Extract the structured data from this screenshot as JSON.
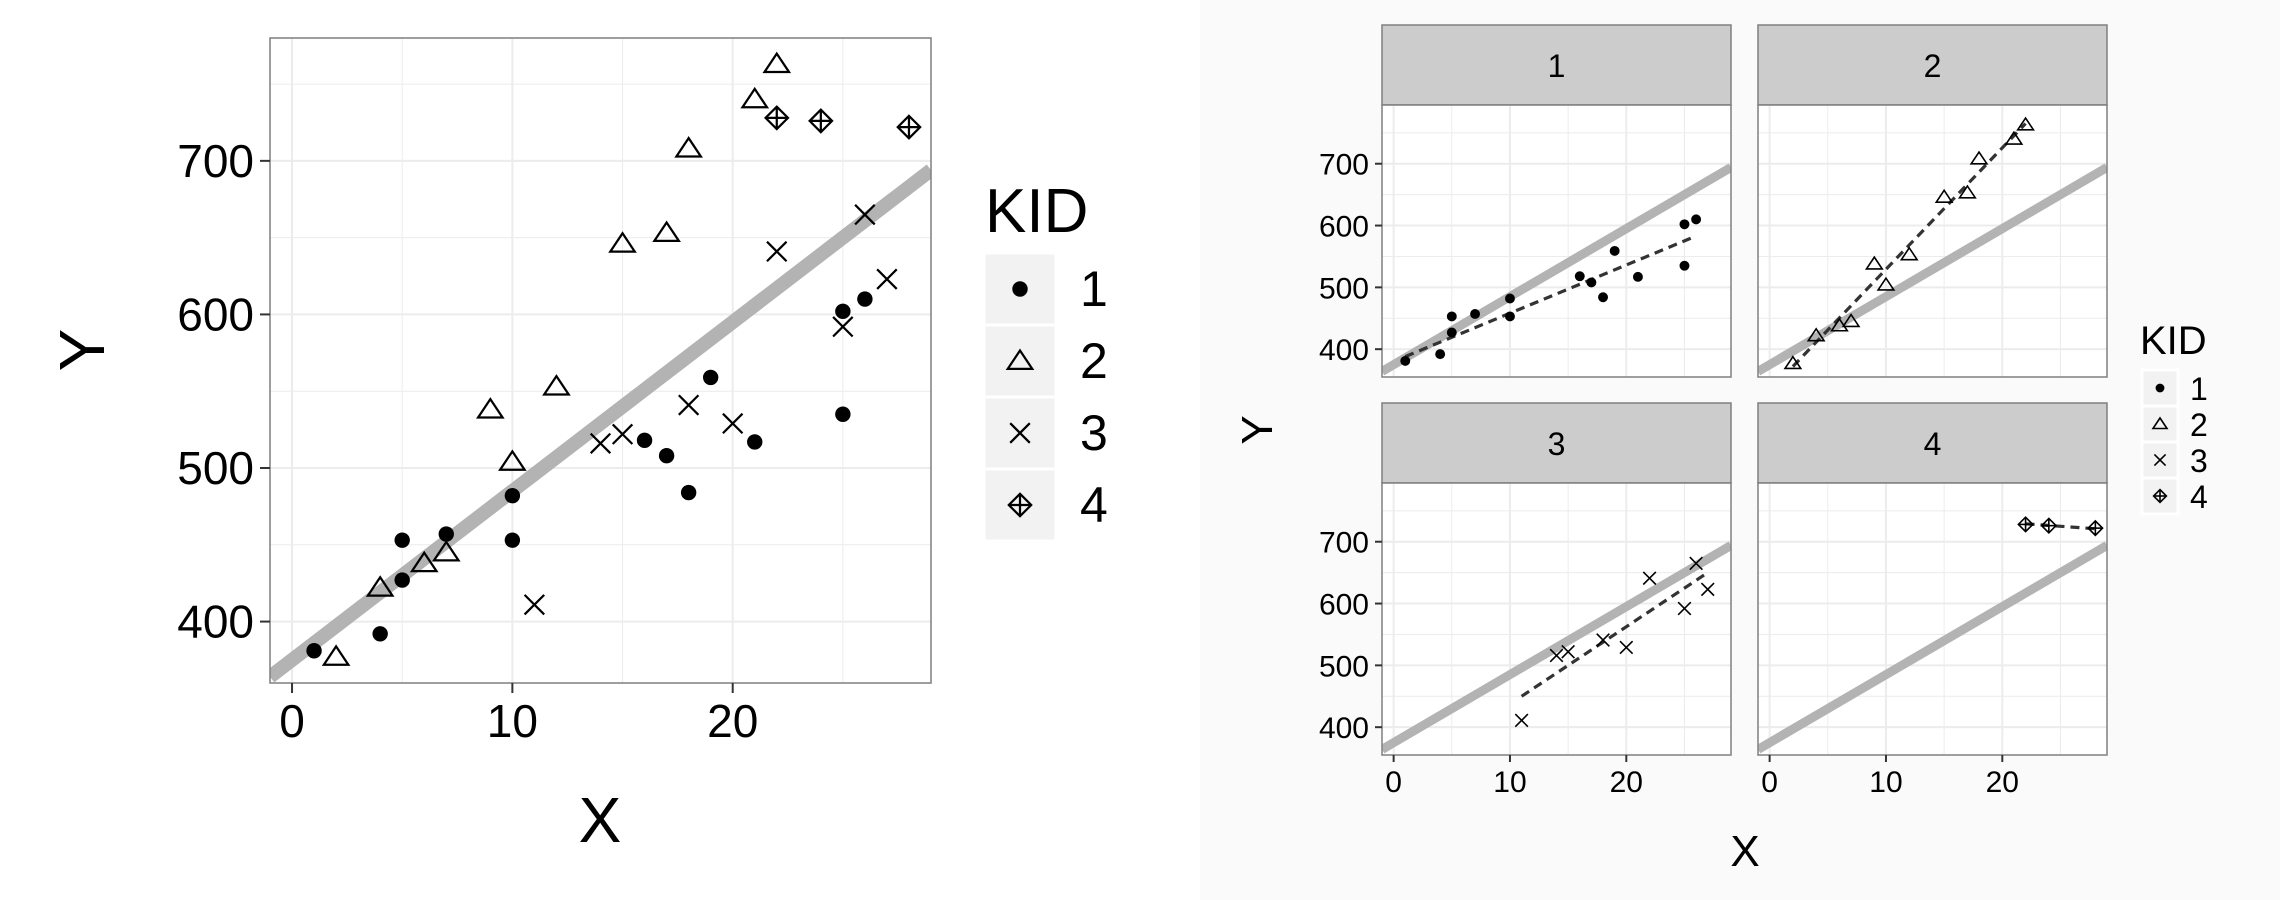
{
  "colors": {
    "background": "#ffffff",
    "right_background": "#fafafa",
    "panel_background": "#ffffff",
    "grid": "#ececec",
    "panel_border": "#7f7f7f",
    "strip_fill": "#cccccc",
    "regression_line": "#b3b3b3",
    "kid_fit_line": "#333333",
    "points": "#000000"
  },
  "chart_data": [
    {
      "type": "scatter",
      "title": "",
      "xlabel": "X",
      "ylabel": "Y",
      "xlim": [
        -1,
        29
      ],
      "ylim": [
        360,
        780
      ],
      "xticks": [
        0,
        10,
        20
      ],
      "yticks": [
        400,
        500,
        600,
        700
      ],
      "grid": true,
      "legend": {
        "title": "KID",
        "position": "right",
        "entries": [
          "1",
          "2",
          "3",
          "4"
        ],
        "shapes": [
          "filled-circle",
          "open-triangle",
          "cross",
          "circle-plus"
        ]
      },
      "regression_line": {
        "intercept": 375,
        "slope": 11,
        "color": "#b3b3b3"
      },
      "series": [
        {
          "name": "1",
          "shape": "filled-circle",
          "x": [
            1,
            4,
            5,
            5,
            7,
            10,
            10,
            16,
            17,
            18,
            19,
            21,
            25,
            25,
            26
          ],
          "y": [
            381,
            392,
            427,
            453,
            457,
            453,
            482,
            518,
            508,
            484,
            559,
            517,
            535,
            602,
            610
          ]
        },
        {
          "name": "2",
          "shape": "open-triangle",
          "x": [
            2,
            4,
            6,
            7,
            9,
            10,
            12,
            15,
            17,
            18,
            21,
            22
          ],
          "y": [
            377,
            422,
            438,
            445,
            538,
            504,
            553,
            646,
            653,
            708,
            740,
            763
          ]
        },
        {
          "name": "3",
          "shape": "cross",
          "x": [
            11,
            14,
            15,
            18,
            20,
            22,
            25,
            26,
            27
          ],
          "y": [
            411,
            516,
            522,
            541,
            529,
            641,
            592,
            665,
            623
          ]
        },
        {
          "name": "4",
          "shape": "circle-plus",
          "x": [
            22,
            24,
            28
          ],
          "y": [
            728,
            726,
            722
          ]
        }
      ]
    },
    {
      "type": "scatter",
      "title": "",
      "xlabel": "X",
      "ylabel": "Y",
      "facets": [
        "1",
        "2",
        "3",
        "4"
      ],
      "xlim": [
        -1,
        29
      ],
      "ylim": [
        355,
        795
      ],
      "xticks": [
        0,
        10,
        20
      ],
      "yticks": [
        400,
        500,
        600,
        700
      ],
      "grid": true,
      "legend": {
        "title": "KID",
        "position": "right",
        "entries": [
          "1",
          "2",
          "3",
          "4"
        ],
        "shapes": [
          "filled-circle",
          "open-triangle",
          "cross",
          "circle-plus"
        ]
      },
      "regression_line": {
        "intercept": 375,
        "slope": 11,
        "color": "#b3b3b3"
      },
      "kid_fit_lines": [
        {
          "name": "1",
          "x": [
            1,
            26
          ],
          "y": [
            388,
            583
          ]
        },
        {
          "name": "2",
          "x": [
            2,
            22
          ],
          "y": [
            372,
            765
          ]
        },
        {
          "name": "3",
          "x": [
            11,
            27
          ],
          "y": [
            450,
            650
          ]
        },
        {
          "name": "4",
          "x": [
            22,
            28
          ],
          "y": [
            729,
            721
          ]
        }
      ]
    }
  ]
}
